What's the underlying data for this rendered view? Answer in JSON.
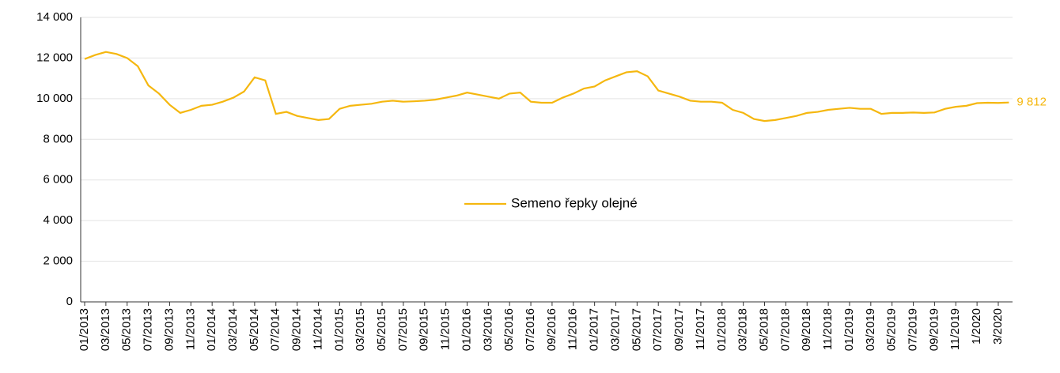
{
  "chart_data": {
    "type": "line",
    "categories": [
      "01/2013",
      null,
      "03/2013",
      null,
      "05/2013",
      null,
      "07/2013",
      null,
      "09/2013",
      null,
      "11/2013",
      null,
      "01/2014",
      null,
      "03/2014",
      null,
      "05/2014",
      null,
      "07/2014",
      null,
      "09/2014",
      null,
      "11/2014",
      null,
      "01/2015",
      null,
      "03/2015",
      null,
      "05/2015",
      null,
      "07/2015",
      null,
      "09/2015",
      null,
      "11/2015",
      null,
      "01/2016",
      null,
      "03/2016",
      null,
      "05/2016",
      null,
      "07/2016",
      null,
      "09/2016",
      null,
      "11/2016",
      null,
      "01/2017",
      null,
      "03/2017",
      null,
      "05/2017",
      null,
      "07/2017",
      null,
      "09/2017",
      null,
      "11/2017",
      null,
      "01/2018",
      null,
      "03/2018",
      null,
      "05/2018",
      null,
      "07/2018",
      null,
      "09/2018",
      null,
      "11/2018",
      null,
      "01/2019",
      null,
      "03/2019",
      null,
      "05/2019",
      null,
      "07/2019",
      null,
      "09/2019",
      null,
      "11/2019",
      null,
      "1/2020",
      null,
      "3/2020",
      null
    ],
    "series": [
      {
        "name": "Semeno řepky olejné",
        "color": "#f5b70f",
        "values": [
          11950,
          12150,
          12300,
          12200,
          12000,
          11600,
          10650,
          10250,
          9700,
          9300,
          9450,
          9650,
          9700,
          9850,
          10050,
          10350,
          11050,
          10900,
          9250,
          9350,
          9150,
          9050,
          8950,
          9000,
          9500,
          9650,
          9700,
          9750,
          9850,
          9900,
          9850,
          9870,
          9900,
          9950,
          10050,
          10150,
          10300,
          10200,
          10100,
          10000,
          10250,
          10300,
          9850,
          9800,
          9800,
          10050,
          10250,
          10500,
          10600,
          10900,
          11100,
          11300,
          11350,
          11100,
          10400,
          10250,
          10100,
          9900,
          9850,
          9850,
          9800,
          9450,
          9300,
          9000,
          8900,
          8950,
          9050,
          9150,
          9300,
          9350,
          9450,
          9500,
          9550,
          9500,
          9500,
          9250,
          9300,
          9300,
          9320,
          9300,
          9320,
          9500,
          9600,
          9650,
          9780,
          9800,
          9790,
          9812
        ],
        "value_labels": [
          null,
          null,
          null,
          null,
          null,
          null,
          null,
          null,
          null,
          null,
          null,
          null,
          null,
          null,
          null,
          null,
          null,
          null,
          null,
          null,
          null,
          null,
          null,
          null,
          null,
          null,
          null,
          null,
          null,
          null,
          null,
          null,
          null,
          null,
          null,
          null,
          null,
          null,
          null,
          null,
          null,
          null,
          null,
          null,
          null,
          null,
          null,
          null,
          null,
          null,
          null,
          null,
          null,
          null,
          null,
          null,
          null,
          null,
          null,
          null,
          null,
          null,
          null,
          null,
          null,
          null,
          null,
          null,
          null,
          null,
          null,
          null,
          null,
          null,
          null,
          null,
          null,
          null,
          null,
          null,
          null,
          null,
          null,
          null,
          null,
          null,
          null,
          "9 812"
        ]
      }
    ],
    "ylim": [
      0,
      14000
    ],
    "yticks": [
      0,
      {
        "value": 2000,
        "label": "2 000"
      },
      {
        "value": 4000,
        "label": "4 000"
      },
      {
        "value": 6000,
        "label": "6 000"
      },
      {
        "value": 8000,
        "label": "8 000"
      },
      {
        "value": 10000,
        "label": "10 000"
      },
      {
        "value": 12000,
        "label": "12 000"
      },
      {
        "value": 14000,
        "label": "14 000"
      }
    ],
    "grid": true,
    "legend": "center"
  }
}
